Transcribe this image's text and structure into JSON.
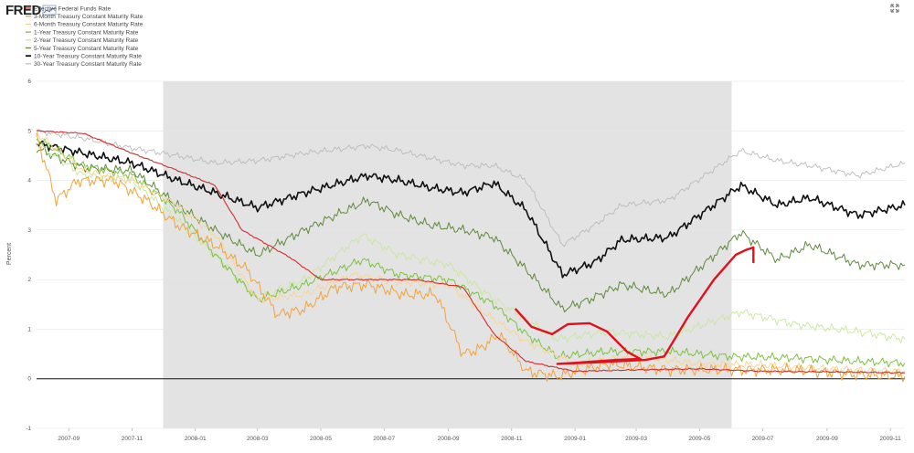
{
  "brand": {
    "logo": "FRED"
  },
  "header": {
    "expand_icon": "expand-arrows-icon"
  },
  "chart_data": {
    "type": "line",
    "title": "",
    "xlabel": "",
    "ylabel": "Percent",
    "ylim": [
      -1,
      6
    ],
    "xlim": [
      "2007-08-01",
      "2009-11-15"
    ],
    "grid": "horizontal",
    "legend_position": "top-left",
    "y_ticks": [
      -1,
      0,
      1,
      2,
      3,
      4,
      5,
      6
    ],
    "x_ticks": [
      "2007-09",
      "2007-11",
      "2008-01",
      "2008-03",
      "2008-05",
      "2008-07",
      "2008-09",
      "2008-11",
      "2009-01",
      "2009-03",
      "2009-05",
      "2009-07",
      "2009-09",
      "2009-11"
    ],
    "recession": {
      "start": "2007-12-01",
      "end": "2009-06-01",
      "color": "#e3e3e3"
    },
    "series": [
      {
        "name": "Effective Federal Funds Rate",
        "color": "#d62b2b",
        "x": [
          "2007-08-01",
          "2007-09-15",
          "2007-11-01",
          "2007-12-15",
          "2008-01-20",
          "2008-02-15",
          "2008-04-01",
          "2008-05-01",
          "2008-06-15",
          "2008-08-01",
          "2008-09-15",
          "2008-10-15",
          "2008-11-15",
          "2009-01-01",
          "2009-03-01",
          "2009-05-01",
          "2009-07-01",
          "2009-09-01",
          "2009-11-15"
        ],
        "values": [
          5.0,
          4.95,
          4.55,
          4.2,
          3.9,
          3.0,
          2.45,
          2.0,
          2.0,
          2.0,
          1.85,
          0.9,
          0.35,
          0.15,
          0.18,
          0.2,
          0.15,
          0.14,
          0.12
        ]
      },
      {
        "name": "3-Month Treasury Constant Maturity Rate",
        "color": "#f2a33a",
        "x": [
          "2007-08-01",
          "2007-08-20",
          "2007-09-10",
          "2007-10-15",
          "2007-11-15",
          "2007-12-15",
          "2008-01-20",
          "2008-02-20",
          "2008-03-20",
          "2008-04-15",
          "2008-05-15",
          "2008-06-15",
          "2008-07-20",
          "2008-08-20",
          "2008-09-15",
          "2008-10-01",
          "2008-10-20",
          "2008-11-15",
          "2008-12-15",
          "2009-02-01",
          "2009-04-01",
          "2009-06-01",
          "2009-08-01",
          "2009-10-01",
          "2009-11-15"
        ],
        "values": [
          4.9,
          3.6,
          4.0,
          4.0,
          3.6,
          3.1,
          2.7,
          2.2,
          1.3,
          1.4,
          1.85,
          1.9,
          1.7,
          1.7,
          0.5,
          0.6,
          0.9,
          0.15,
          0.05,
          0.3,
          0.18,
          0.18,
          0.18,
          0.08,
          0.05
        ]
      },
      {
        "name": "6-Month Treasury Constant Maturity Rate",
        "color": "#f9d48e",
        "x": [
          "2007-08-01",
          "2007-09-15",
          "2007-11-01",
          "2007-12-15",
          "2008-01-20",
          "2008-03-01",
          "2008-04-15",
          "2008-06-01",
          "2008-07-15",
          "2008-09-01",
          "2008-10-01",
          "2008-11-15",
          "2009-01-01",
          "2009-03-01",
          "2009-05-01",
          "2009-07-01",
          "2009-09-01",
          "2009-11-15"
        ],
        "values": [
          4.95,
          4.2,
          4.0,
          3.5,
          2.9,
          1.6,
          1.7,
          2.1,
          1.95,
          1.9,
          1.4,
          0.75,
          0.3,
          0.45,
          0.3,
          0.28,
          0.2,
          0.15
        ]
      },
      {
        "name": "1-Year Treasury Constant Maturity Rate",
        "color": "#7cc142",
        "x": [
          "2007-08-01",
          "2007-09-15",
          "2007-11-01",
          "2007-12-15",
          "2008-01-20",
          "2008-03-01",
          "2008-04-15",
          "2008-06-10",
          "2008-07-15",
          "2008-09-01",
          "2008-10-15",
          "2008-11-15",
          "2008-12-15",
          "2009-02-01",
          "2009-04-01",
          "2009-06-01",
          "2009-08-01",
          "2009-10-01",
          "2009-11-15"
        ],
        "values": [
          4.85,
          4.3,
          4.1,
          3.4,
          2.5,
          1.6,
          1.9,
          2.4,
          2.1,
          2.0,
          1.5,
          0.9,
          0.45,
          0.55,
          0.55,
          0.45,
          0.42,
          0.35,
          0.32
        ]
      },
      {
        "name": "2-Year Treasury Constant Maturity Rate",
        "color": "#c7e79c",
        "x": [
          "2007-08-01",
          "2007-09-15",
          "2007-11-01",
          "2007-12-15",
          "2008-01-20",
          "2008-03-01",
          "2008-04-15",
          "2008-06-10",
          "2008-07-15",
          "2008-09-01",
          "2008-10-15",
          "2008-11-15",
          "2008-12-15",
          "2009-02-01",
          "2009-04-01",
          "2009-06-10",
          "2009-08-01",
          "2009-10-01",
          "2009-11-15"
        ],
        "values": [
          4.75,
          4.1,
          4.0,
          3.2,
          2.5,
          1.6,
          2.0,
          2.9,
          2.5,
          2.3,
          1.6,
          1.2,
          0.8,
          0.95,
          0.85,
          1.35,
          1.1,
          0.95,
          0.8
        ]
      },
      {
        "name": "5-Year Treasury Constant Maturity Rate",
        "color": "#5e8a3a",
        "x": [
          "2007-08-01",
          "2007-09-15",
          "2007-11-01",
          "2007-12-15",
          "2008-01-20",
          "2008-03-01",
          "2008-04-15",
          "2008-06-15",
          "2008-07-15",
          "2008-08-15",
          "2008-09-15",
          "2008-10-15",
          "2008-11-15",
          "2008-12-20",
          "2009-01-15",
          "2009-02-15",
          "2009-04-01",
          "2009-06-10",
          "2009-07-15",
          "2009-08-15",
          "2009-10-01",
          "2009-11-15"
        ],
        "values": [
          4.65,
          4.25,
          4.2,
          3.5,
          3.0,
          2.5,
          3.0,
          3.6,
          3.3,
          3.1,
          3.0,
          2.85,
          2.2,
          1.4,
          1.6,
          1.9,
          1.7,
          2.95,
          2.4,
          2.7,
          2.3,
          2.3
        ]
      },
      {
        "name": "10-Year Treasury Constant Maturity Rate",
        "color": "#111111",
        "x": [
          "2007-08-01",
          "2007-09-15",
          "2007-11-01",
          "2007-12-15",
          "2008-01-20",
          "2008-03-01",
          "2008-04-15",
          "2008-06-15",
          "2008-07-15",
          "2008-08-15",
          "2008-09-15",
          "2008-10-15",
          "2008-11-15",
          "2008-12-20",
          "2009-01-20",
          "2009-02-15",
          "2009-04-01",
          "2009-06-10",
          "2009-07-15",
          "2009-08-15",
          "2009-10-01",
          "2009-11-15"
        ],
        "values": [
          4.75,
          4.55,
          4.35,
          4.0,
          3.75,
          3.45,
          3.75,
          4.1,
          4.0,
          3.85,
          3.75,
          3.95,
          3.4,
          2.1,
          2.35,
          2.8,
          2.85,
          3.9,
          3.5,
          3.65,
          3.3,
          3.5
        ]
      },
      {
        "name": "30-Year Treasury Constant Maturity Rate",
        "color": "#bbbbbb",
        "x": [
          "2007-08-01",
          "2007-09-15",
          "2007-11-01",
          "2007-12-15",
          "2008-01-20",
          "2008-03-01",
          "2008-04-15",
          "2008-06-15",
          "2008-07-15",
          "2008-08-15",
          "2008-09-15",
          "2008-10-15",
          "2008-11-15",
          "2008-12-20",
          "2009-01-20",
          "2009-02-15",
          "2009-04-01",
          "2009-06-10",
          "2009-07-15",
          "2009-08-15",
          "2009-10-01",
          "2009-11-15"
        ],
        "values": [
          5.0,
          4.85,
          4.65,
          4.5,
          4.35,
          4.4,
          4.55,
          4.7,
          4.6,
          4.45,
          4.3,
          4.3,
          4.0,
          2.7,
          3.1,
          3.5,
          3.6,
          4.6,
          4.4,
          4.3,
          4.1,
          4.35
        ]
      }
    ],
    "annotation": {
      "type": "hand-drawn-stroke",
      "color": "#e0101d",
      "x": [
        "2008-11-05",
        "2008-11-20",
        "2008-12-10",
        "2008-12-25",
        "2009-01-15",
        "2009-02-01",
        "2009-02-20",
        "2009-03-05",
        "2009-02-10",
        "2009-01-01",
        "2008-12-15",
        "2009-01-20",
        "2009-03-10",
        "2009-03-28",
        "2009-04-20",
        "2009-05-15",
        "2009-06-05",
        "2009-06-15",
        "2009-06-22",
        "2009-06-22"
      ],
      "values": [
        1.4,
        1.05,
        0.9,
        1.1,
        1.12,
        0.95,
        0.55,
        0.4,
        0.38,
        0.32,
        0.3,
        0.33,
        0.38,
        0.45,
        1.25,
        2.0,
        2.5,
        2.6,
        2.65,
        2.35
      ]
    }
  }
}
